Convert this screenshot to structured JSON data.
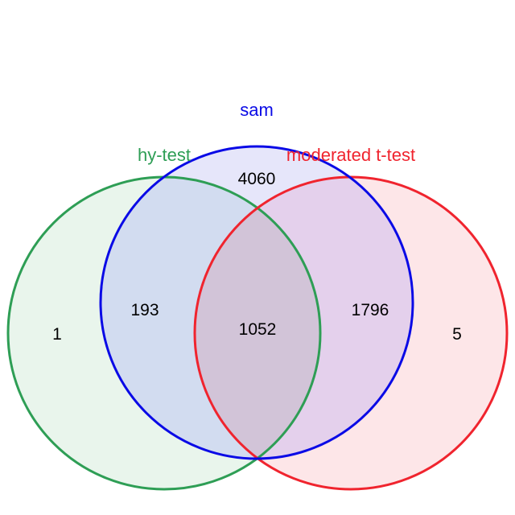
{
  "sets": {
    "sam": {
      "label": "sam",
      "color": "#0a0ae6",
      "fill": "#e6e6fa"
    },
    "hy_test": {
      "label": "hy-test",
      "color": "#2e9e55",
      "fill": "#e9f5ec"
    },
    "moderated_t_test": {
      "label": "moderated t-test",
      "color": "#f0242e",
      "fill": "#fde6e8"
    }
  },
  "regions": {
    "sam_only": "4060",
    "hy_test_only": "1",
    "moderated_t_test_only": "5",
    "sam_and_hy_test": "193",
    "sam_and_moderated_t_test": "1796",
    "all_three": "1052"
  }
}
